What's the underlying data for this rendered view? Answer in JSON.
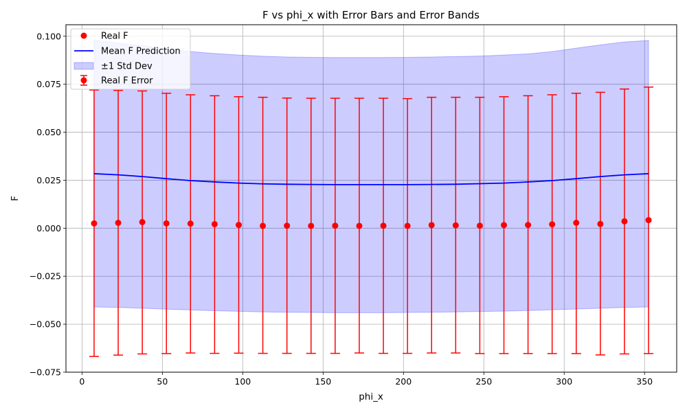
{
  "chart_data": {
    "type": "line",
    "title": "F vs phi_x with Error Bars and Error Bands",
    "xlabel": "phi_x",
    "ylabel": "F",
    "xlim": [
      -10,
      370
    ],
    "ylim": [
      -0.075,
      0.106
    ],
    "x_ticks": [
      0,
      50,
      100,
      150,
      200,
      250,
      300,
      350
    ],
    "y_ticks": [
      -0.075,
      -0.05,
      -0.025,
      0.0,
      0.025,
      0.05,
      0.075,
      0.1
    ],
    "x_tick_labels": [
      "0",
      "50",
      "100",
      "150",
      "200",
      "250",
      "300",
      "350"
    ],
    "y_tick_labels": [
      "−0.075",
      "−0.050",
      "−0.025",
      "0.000",
      "0.025",
      "0.050",
      "0.075",
      "0.100"
    ],
    "grid": true,
    "legend_position": "top-left",
    "x": [
      7.5,
      22.5,
      37.5,
      52.5,
      67.5,
      82.5,
      97.5,
      112.5,
      127.5,
      142.5,
      157.5,
      172.5,
      187.5,
      202.5,
      217.5,
      232.5,
      247.5,
      262.5,
      277.5,
      292.5,
      307.5,
      322.5,
      337.5,
      352.5
    ],
    "series": [
      {
        "name": "Real F",
        "kind": "scatter",
        "color": "#ff0000",
        "values": [
          0.0025,
          0.0028,
          0.0032,
          0.0025,
          0.0024,
          0.0021,
          0.0017,
          0.0012,
          0.0013,
          0.0012,
          0.0013,
          0.0012,
          0.0013,
          0.0012,
          0.0016,
          0.0015,
          0.0013,
          0.0016,
          0.0017,
          0.002,
          0.0028,
          0.0022,
          0.0036,
          0.0042
        ]
      },
      {
        "name": "Real F Error",
        "kind": "errorbar",
        "color": "#ff0000",
        "upper": [
          0.072,
          0.0718,
          0.0715,
          0.0703,
          0.0695,
          0.069,
          0.0685,
          0.0682,
          0.0678,
          0.0677,
          0.0677,
          0.0677,
          0.0677,
          0.0675,
          0.0682,
          0.0682,
          0.0682,
          0.0685,
          0.069,
          0.0695,
          0.0703,
          0.0708,
          0.0725,
          0.0735
        ],
        "lower": [
          -0.0668,
          -0.0661,
          -0.0655,
          -0.0653,
          -0.065,
          -0.0652,
          -0.0651,
          -0.0652,
          -0.0652,
          -0.0652,
          -0.0652,
          -0.065,
          -0.0652,
          -0.0652,
          -0.065,
          -0.065,
          -0.0653,
          -0.0653,
          -0.0653,
          -0.0653,
          -0.0653,
          -0.066,
          -0.0655,
          -0.0653
        ]
      },
      {
        "name": "Mean F Prediction",
        "kind": "line",
        "color": "#0000ff",
        "values": [
          0.0284,
          0.0278,
          0.0269,
          0.0258,
          0.0248,
          0.0241,
          0.0235,
          0.0231,
          0.0229,
          0.0228,
          0.0227,
          0.0227,
          0.0227,
          0.0227,
          0.0228,
          0.0229,
          0.0232,
          0.0235,
          0.0241,
          0.0248,
          0.0258,
          0.0269,
          0.0278,
          0.0284
        ]
      },
      {
        "name": "±1 Std Dev",
        "kind": "band",
        "color": "#0000ff",
        "opacity": 0.2,
        "upper": [
          0.098,
          0.0965,
          0.095,
          0.0935,
          0.092,
          0.091,
          0.0902,
          0.0896,
          0.0892,
          0.089,
          0.0889,
          0.0889,
          0.0889,
          0.089,
          0.0892,
          0.0894,
          0.0897,
          0.0902,
          0.0908,
          0.092,
          0.0938,
          0.0955,
          0.097,
          0.0978
        ],
        "lower": [
          -0.041,
          -0.0413,
          -0.0417,
          -0.0422,
          -0.0426,
          -0.043,
          -0.0433,
          -0.0436,
          -0.0438,
          -0.0439,
          -0.044,
          -0.044,
          -0.044,
          -0.0439,
          -0.0438,
          -0.0436,
          -0.0434,
          -0.0432,
          -0.0429,
          -0.0425,
          -0.0421,
          -0.0417,
          -0.0413,
          -0.041
        ]
      }
    ],
    "legend": [
      "Real F",
      "Mean F Prediction",
      "±1 Std Dev",
      "Real F Error"
    ]
  }
}
